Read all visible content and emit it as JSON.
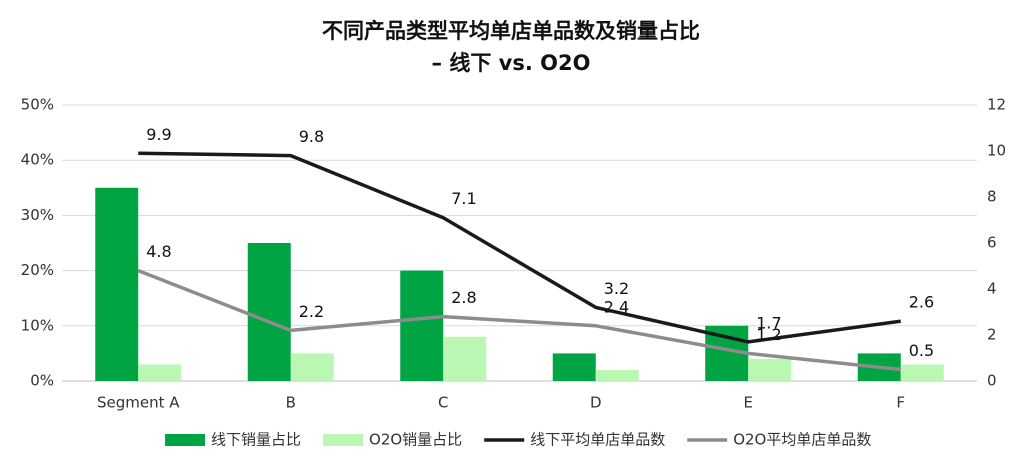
{
  "chart_data": {
    "type": "bar-line",
    "title": "不同产品类型平均单店单品数及销量占比",
    "subtitle": "– 线下 vs. O2O",
    "categories": [
      "Segment A",
      "B",
      "C",
      "D",
      "E",
      "F"
    ],
    "series": [
      {
        "name": "线下销量占比",
        "color": "#00a443",
        "type": "bar",
        "values": [
          35,
          25,
          20,
          5,
          10,
          5
        ]
      },
      {
        "name": "O2O销量占比",
        "color": "#b9f7b3",
        "type": "bar",
        "values": [
          3,
          5,
          8,
          2,
          4,
          3
        ]
      },
      {
        "name": "线下平均单店单品数",
        "color": "#1a1a1a",
        "type": "line",
        "axis": "y2",
        "values": [
          9.9,
          9.8,
          7.1,
          3.2,
          1.7,
          2.6
        ]
      },
      {
        "name": "O2O平均单店单品数",
        "color": "#8c8c8c",
        "type": "line",
        "axis": "y2",
        "values": [
          4.8,
          2.2,
          2.8,
          2.4,
          1.2,
          0.5
        ]
      }
    ],
    "ylim": [
      0,
      50
    ],
    "yticks": [
      {
        "value": 0,
        "label": "0%"
      },
      {
        "value": 10,
        "label": "10%"
      },
      {
        "value": 20,
        "label": "20%"
      },
      {
        "value": 30,
        "label": "30%"
      },
      {
        "value": 40,
        "label": "40%"
      },
      {
        "value": 50,
        "label": "50%"
      }
    ],
    "y2lim": [
      0,
      12
    ],
    "y2ticks": [
      0,
      2,
      4,
      6,
      8,
      10,
      12
    ],
    "grid": true,
    "legend": "bottom"
  }
}
